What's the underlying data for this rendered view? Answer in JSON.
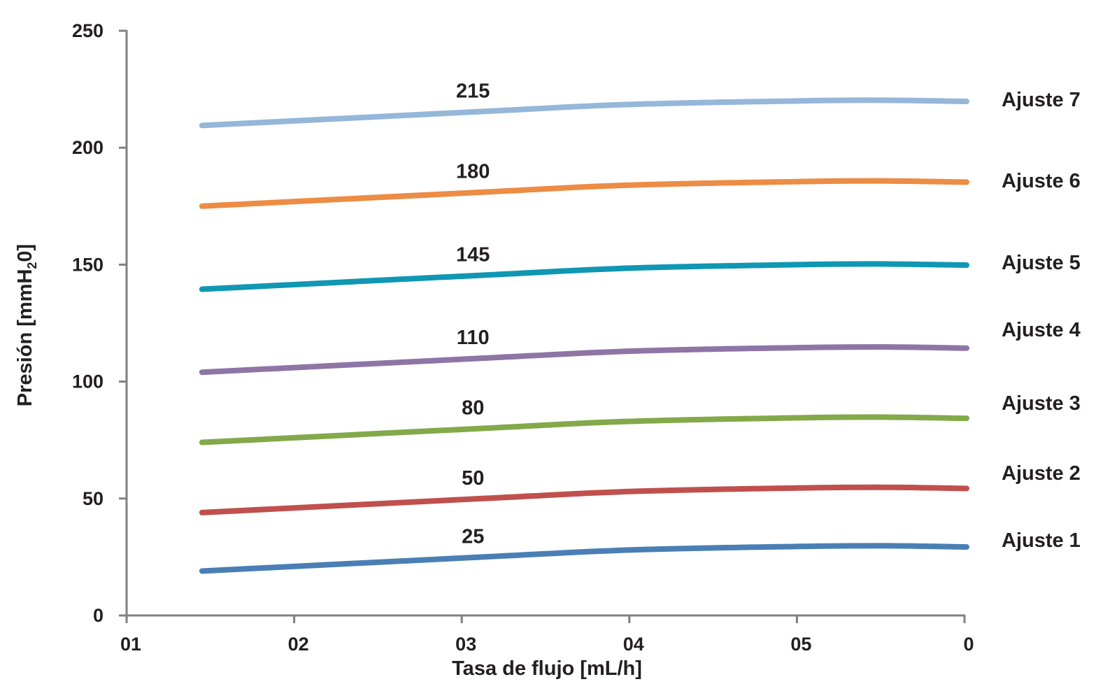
{
  "chart_data": {
    "type": "line",
    "xlabel": "Tasa de flujo [mL/h]",
    "ylabel": {
      "main": "Presión [mmH",
      "sub": "2",
      "end": "0]"
    },
    "x_tick_labels": [
      "01",
      "02",
      "03",
      "04",
      "05",
      "0"
    ],
    "y_ticks": [
      0,
      50,
      100,
      150,
      200,
      250
    ],
    "ylim": [
      0,
      250
    ],
    "x": [
      5,
      8,
      10,
      12,
      14.9,
      15.5
    ],
    "xlim": [
      0.5,
      20.5
    ],
    "x_tick_positions": [
      0.5,
      4.5,
      8.5,
      12.5,
      16.5,
      20.5
    ],
    "x_range": [
      2.3,
      20.55
    ],
    "label_x": 8.5,
    "grid": false,
    "legend": "right",
    "series": [
      {
        "name": "Ajuste 1",
        "color": "#4a7fb5",
        "label": "25",
        "values": [
          19,
          25,
          28,
          29.5,
          29.8,
          29.3
        ]
      },
      {
        "name": "Ajuste 2",
        "color": "#c0504d",
        "label": "50",
        "values": [
          44,
          50,
          53,
          54.5,
          54.8,
          54.3
        ]
      },
      {
        "name": "Ajuste 3",
        "color": "#83a94a",
        "label": "80",
        "values": [
          74,
          80,
          83,
          84.5,
          84.8,
          84.3
        ]
      },
      {
        "name": "Ajuste 4",
        "color": "#8e75a6",
        "label": "110",
        "values": [
          104,
          110,
          113,
          114.5,
          114.8,
          114.3
        ]
      },
      {
        "name": "Ajuste 5",
        "color": "#0f97b3",
        "label": "145",
        "values": [
          139.5,
          145.5,
          148.5,
          150,
          150.3,
          149.8
        ]
      },
      {
        "name": "Ajuste 6",
        "color": "#ec8c45",
        "label": "180",
        "values": [
          175,
          181,
          184,
          185.5,
          185.8,
          185.3
        ]
      },
      {
        "name": "Ajuste 7",
        "color": "#95b7d9",
        "label": "215",
        "values": [
          209.5,
          215.5,
          218.5,
          220,
          220.3,
          219.8
        ]
      }
    ]
  }
}
